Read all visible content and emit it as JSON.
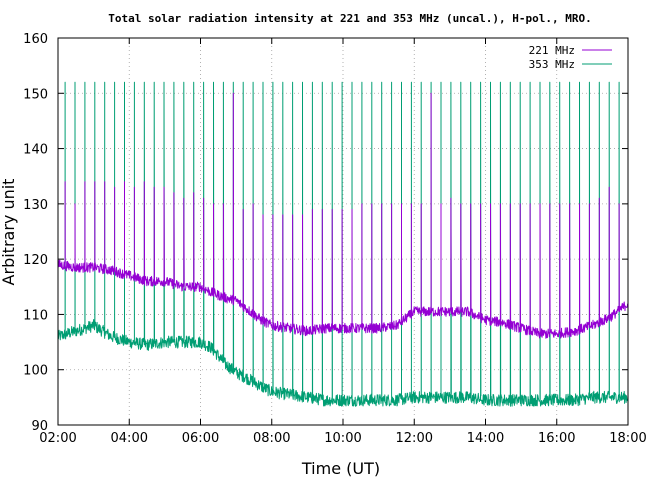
{
  "chart_data": {
    "type": "line",
    "title": "Total solar radiation intensity at 221 and 353 MHz (uncal.), H-pol., MRO.",
    "xlabel": "Time (UT)",
    "ylabel": "Arbitrary unit",
    "xlim": [
      "02:00",
      "18:00"
    ],
    "ylim": [
      90,
      160
    ],
    "x_ticks": [
      "02:00",
      "04:00",
      "06:00",
      "08:00",
      "10:00",
      "12:00",
      "14:00",
      "16:00",
      "18:00"
    ],
    "y_ticks": [
      90,
      100,
      110,
      120,
      130,
      140,
      150,
      160
    ],
    "grid": true,
    "legend_position": "top-right",
    "series": [
      {
        "name": "221 MHz",
        "color": "#9400d3",
        "baseline_x_hours": [
          2.0,
          2.5,
          3.0,
          3.5,
          4.0,
          4.5,
          5.0,
          5.5,
          6.0,
          6.3,
          6.7,
          7.0,
          7.3,
          7.7,
          8.0,
          8.5,
          9.0,
          9.5,
          10.0,
          10.5,
          11.0,
          11.5,
          12.0,
          12.5,
          13.0,
          13.5,
          14.0,
          14.5,
          15.0,
          15.5,
          16.0,
          16.5,
          17.0,
          17.5,
          18.0
        ],
        "baseline_values": [
          119,
          118.5,
          118.5,
          118,
          117,
          116,
          116,
          115,
          115,
          114,
          113,
          112.5,
          111,
          109,
          108,
          107.5,
          107,
          107.5,
          107.5,
          107.5,
          107.5,
          108,
          110.5,
          110.5,
          110.5,
          110.5,
          109,
          108.5,
          107.5,
          106.5,
          106.5,
          107,
          108,
          109.5,
          112
        ],
        "spike_peaks": [
          134,
          130,
          134,
          134,
          134,
          133,
          134,
          133,
          134,
          133,
          133,
          132,
          131,
          132,
          131,
          130,
          130,
          150,
          129,
          130,
          128,
          128,
          128,
          128,
          128,
          129,
          129,
          129,
          129,
          129,
          130,
          130,
          130,
          130,
          130,
          130,
          130,
          150,
          130,
          131,
          130,
          130,
          130,
          130,
          130,
          130,
          130,
          130,
          130,
          130,
          130,
          130,
          130,
          130,
          131,
          133,
          130
        ]
      },
      {
        "name": "353 MHz",
        "color": "#009e73",
        "baseline_x_hours": [
          2.0,
          2.5,
          3.0,
          3.5,
          4.0,
          4.5,
          5.0,
          5.5,
          6.0,
          6.3,
          6.7,
          7.0,
          7.3,
          7.7,
          8.0,
          8.5,
          9.0,
          9.5,
          10.0,
          10.5,
          11.0,
          11.5,
          12.0,
          12.5,
          13.0,
          13.5,
          14.0,
          14.5,
          15.0,
          15.5,
          16.0,
          16.5,
          17.0,
          17.5,
          18.0
        ],
        "baseline_values": [
          106,
          107,
          108,
          106,
          105,
          104.5,
          105,
          105,
          105,
          104,
          101,
          99.5,
          98.5,
          97,
          96,
          95.5,
          95,
          94.5,
          94.5,
          94.5,
          94.5,
          94.5,
          95,
          95,
          95,
          95,
          94.5,
          94.5,
          94.5,
          94.5,
          94.5,
          94.5,
          95,
          95,
          95
        ],
        "spike_peaks": [
          152,
          152,
          152,
          152,
          152,
          152,
          152,
          152,
          152,
          152,
          152,
          152,
          152,
          152,
          152,
          152,
          152,
          152,
          152,
          152,
          152,
          152,
          152,
          152,
          152,
          152,
          152,
          152,
          152,
          152,
          152,
          152,
          152,
          152,
          152,
          152,
          152,
          152,
          152,
          152,
          152,
          152,
          152,
          152,
          152,
          152,
          152,
          152,
          152,
          152,
          152,
          152,
          152,
          152,
          152,
          152,
          152
        ]
      }
    ]
  }
}
